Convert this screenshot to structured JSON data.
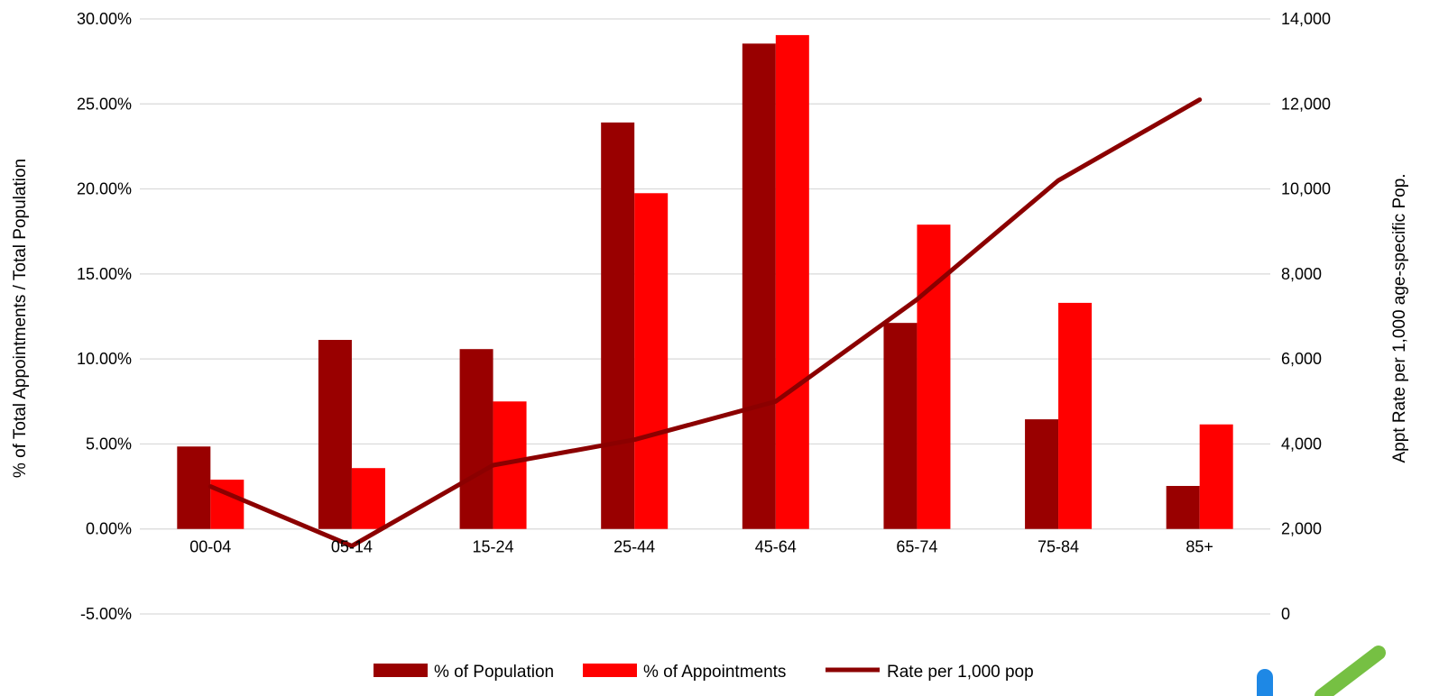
{
  "colors": {
    "population": "#990000",
    "appointments": "#ff0000",
    "rate_line": "#8b0000",
    "gridline": "#d9d9d9",
    "logo_blue": "#1e88e5",
    "logo_green": "#76c043"
  },
  "chart_data": {
    "type": "bar",
    "title": "",
    "categories": [
      "00-04",
      "05-14",
      "15-24",
      "25-44",
      "45-64",
      "65-74",
      "75-84",
      "85+"
    ],
    "series": [
      {
        "name": "% of Population",
        "type": "bar",
        "axis": "left",
        "values": [
          0.0485,
          0.1112,
          0.1058,
          0.2391,
          0.2855,
          0.1212,
          0.0645,
          0.0253
        ]
      },
      {
        "name": "% of Appointments",
        "type": "bar",
        "axis": "left",
        "values": [
          0.029,
          0.0358,
          0.075,
          0.1975,
          0.2905,
          0.179,
          0.133,
          0.0615
        ]
      },
      {
        "name": "Rate per 1,000 pop",
        "type": "line",
        "axis": "right",
        "values": [
          3000,
          1600,
          3500,
          4100,
          5000,
          7400,
          10200,
          12100
        ]
      }
    ],
    "left_axis": {
      "label": "% of Total Appointments / Total Population",
      "ylim": [
        -0.05,
        0.3
      ],
      "ticks": [
        -0.05,
        0.0,
        0.05,
        0.1,
        0.15,
        0.2,
        0.25,
        0.3
      ],
      "tick_labels": [
        "-5.00%",
        "0.00%",
        "5.00%",
        "10.00%",
        "15.00%",
        "20.00%",
        "25.00%",
        "30.00%"
      ]
    },
    "right_axis": {
      "label": "Appt Rate per 1,000 age-specific Pop.",
      "ylim": [
        0,
        14000
      ],
      "ticks": [
        0,
        2000,
        4000,
        6000,
        8000,
        10000,
        12000,
        14000
      ],
      "tick_labels": [
        "0",
        "2,000",
        "4,000",
        "6,000",
        "8,000",
        "10,000",
        "12,000",
        "14,000"
      ]
    },
    "grid": true,
    "legend_position": "bottom"
  }
}
